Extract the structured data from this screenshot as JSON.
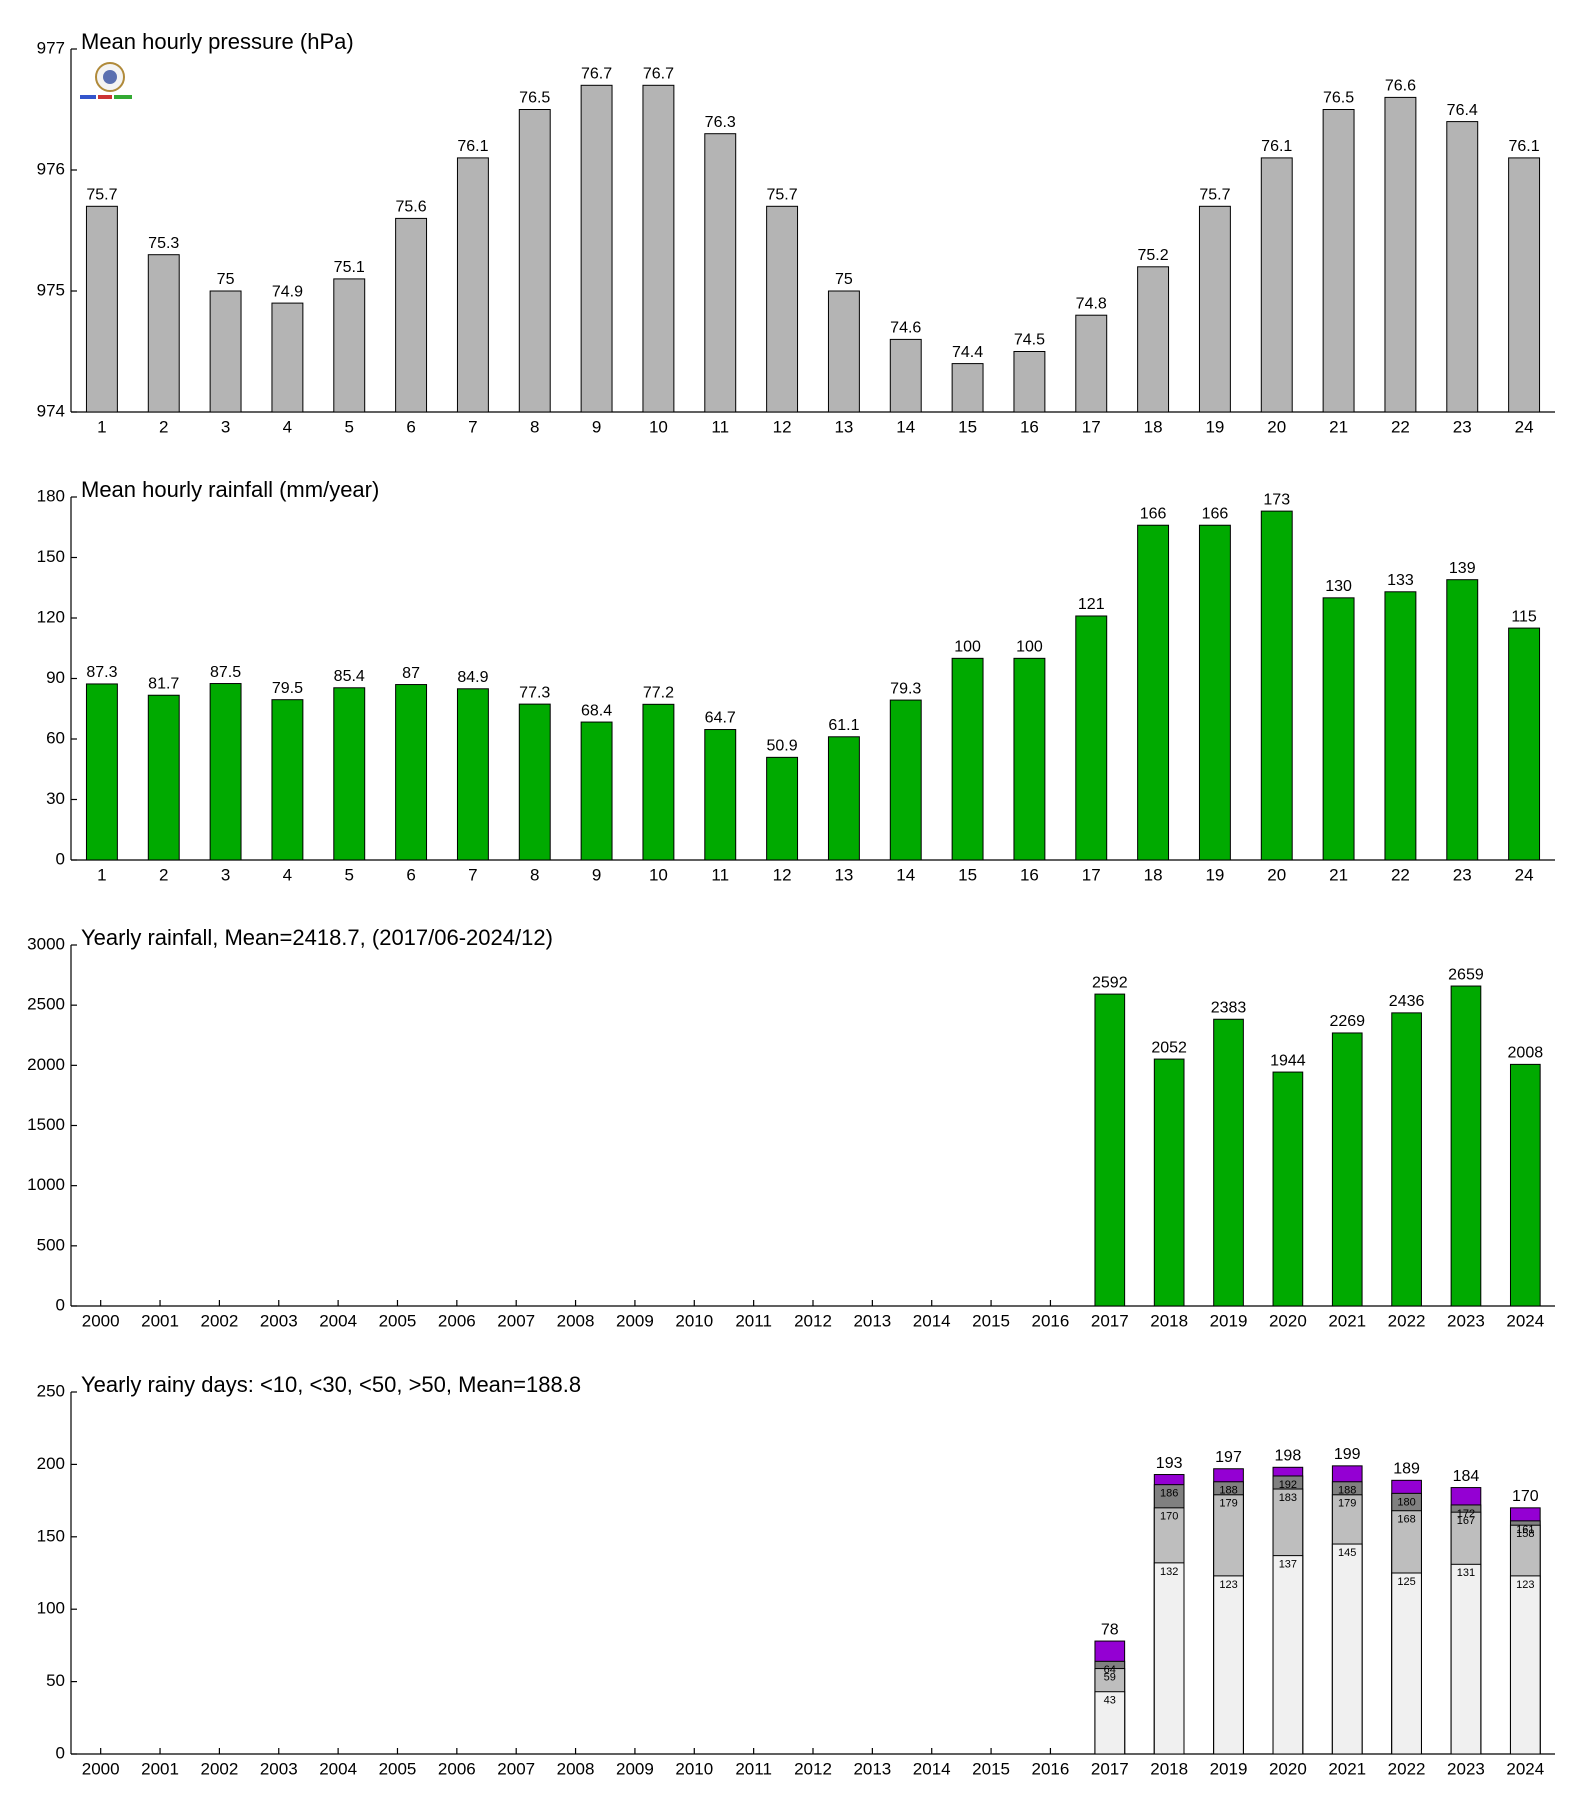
{
  "chart_data": [
    {
      "type": "bar",
      "title": "Mean hourly pressure (hPa)",
      "categories": [
        "1",
        "2",
        "3",
        "4",
        "5",
        "6",
        "7",
        "8",
        "9",
        "10",
        "11",
        "12",
        "13",
        "14",
        "15",
        "16",
        "17",
        "18",
        "19",
        "20",
        "21",
        "22",
        "23",
        "24"
      ],
      "values": [
        975.7,
        975.3,
        975,
        974.9,
        975.1,
        975.6,
        976.1,
        976.5,
        976.7,
        976.7,
        976.3,
        975.7,
        975,
        974.6,
        974.4,
        974.5,
        974.8,
        975.2,
        975.7,
        976.1,
        976.5,
        976.6,
        976.4,
        976.1
      ],
      "value_labels": [
        "75.7",
        "75.3",
        "75",
        "74.9",
        "75.1",
        "75.6",
        "76.1",
        "76.5",
        "76.7",
        "76.7",
        "76.3",
        "75.7",
        "75",
        "74.6",
        "74.4",
        "74.5",
        "74.8",
        "75.2",
        "75.7",
        "76.1",
        "76.5",
        "76.6",
        "76.4",
        "76.1"
      ],
      "color": "#b4b4b4",
      "ylim": [
        974,
        977
      ],
      "yticks": [
        974,
        975,
        976,
        977
      ]
    },
    {
      "type": "bar",
      "title": "Mean hourly rainfall (mm/year)",
      "categories": [
        "1",
        "2",
        "3",
        "4",
        "5",
        "6",
        "7",
        "8",
        "9",
        "10",
        "11",
        "12",
        "13",
        "14",
        "15",
        "16",
        "17",
        "18",
        "19",
        "20",
        "21",
        "22",
        "23",
        "24"
      ],
      "values": [
        87.3,
        81.7,
        87.5,
        79.5,
        85.4,
        87,
        84.9,
        77.3,
        68.4,
        77.2,
        64.7,
        50.9,
        61.1,
        79.3,
        100,
        100,
        121,
        166,
        166,
        173,
        130,
        133,
        139,
        115
      ],
      "color": "#00aa00",
      "ylim": [
        0,
        180
      ],
      "yticks": [
        0,
        30,
        60,
        90,
        120,
        150,
        180
      ]
    },
    {
      "type": "bar",
      "title": "Yearly rainfall, Mean=2418.7, (2017/06-2024/12)",
      "categories": [
        "2000",
        "2001",
        "2002",
        "2003",
        "2004",
        "2005",
        "2006",
        "2007",
        "2008",
        "2009",
        "2010",
        "2011",
        "2012",
        "2013",
        "2014",
        "2015",
        "2016",
        "2017",
        "2018",
        "2019",
        "2020",
        "2021",
        "2022",
        "2023",
        "2024"
      ],
      "values": [
        null,
        null,
        null,
        null,
        null,
        null,
        null,
        null,
        null,
        null,
        null,
        null,
        null,
        null,
        null,
        null,
        null,
        2592,
        2052,
        2383,
        1944,
        2269,
        2436,
        2659,
        2008
      ],
      "color": "#00aa00",
      "ylim": [
        0,
        3000
      ],
      "yticks": [
        0,
        500,
        1000,
        1500,
        2000,
        2500,
        3000
      ]
    },
    {
      "type": "overlap_bar",
      "title": "Yearly rainy days: <10, <30, <50, >50, Mean=188.8",
      "categories": [
        "2000",
        "2001",
        "2002",
        "2003",
        "2004",
        "2005",
        "2006",
        "2007",
        "2008",
        "2009",
        "2010",
        "2011",
        "2012",
        "2013",
        "2014",
        "2015",
        "2016",
        "2017",
        "2018",
        "2019",
        "2020",
        "2021",
        "2022",
        "2023",
        "2024"
      ],
      "series": [
        {
          "color": "#f0f0f0",
          "values": [
            null,
            null,
            null,
            null,
            null,
            null,
            null,
            null,
            null,
            null,
            null,
            null,
            null,
            null,
            null,
            null,
            null,
            43,
            132,
            123,
            137,
            145,
            125,
            131,
            123
          ]
        },
        {
          "color": "#bebebe",
          "values": [
            null,
            null,
            null,
            null,
            null,
            null,
            null,
            null,
            null,
            null,
            null,
            null,
            null,
            null,
            null,
            null,
            null,
            59,
            170,
            179,
            183,
            179,
            168,
            167,
            158
          ]
        },
        {
          "color": "#808080",
          "values": [
            null,
            null,
            null,
            null,
            null,
            null,
            null,
            null,
            null,
            null,
            null,
            null,
            null,
            null,
            null,
            null,
            null,
            64,
            186,
            188,
            192,
            188,
            180,
            172,
            161
          ]
        },
        {
          "color": "#9400d3",
          "values": [
            null,
            null,
            null,
            null,
            null,
            null,
            null,
            null,
            null,
            null,
            null,
            null,
            null,
            null,
            null,
            null,
            null,
            78,
            193,
            197,
            198,
            199,
            189,
            184,
            170
          ]
        }
      ],
      "ylim": [
        0,
        250
      ],
      "yticks": [
        0,
        50,
        100,
        150,
        200,
        250
      ]
    }
  ]
}
